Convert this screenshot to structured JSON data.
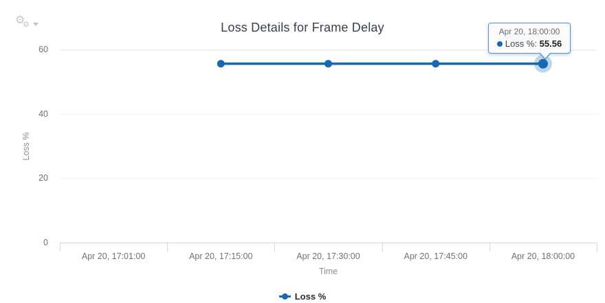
{
  "toolbar": {
    "menu_icon": "gears-icon",
    "menu_caret_icon": "caret-down-icon"
  },
  "chart_data": {
    "type": "line",
    "title": "Loss Details for Frame Delay",
    "xlabel": "Time",
    "ylabel": "Loss %",
    "ylim": [
      0,
      60
    ],
    "yticks": [
      0,
      20,
      40,
      60
    ],
    "x_tick_labels": [
      "Apr 20, 17:01:00",
      "Apr 20, 17:15:00",
      "Apr 20, 17:30:00",
      "Apr 20, 17:45:00",
      "Apr 20, 18:00:00"
    ],
    "grid": true,
    "legend": {
      "position": "bottom",
      "entries": [
        "Loss %"
      ]
    },
    "series": [
      {
        "name": "Loss %",
        "color": "#1669b2",
        "points": [
          {
            "x": "Apr 20, 17:15:00",
            "y": 55.56
          },
          {
            "x": "Apr 20, 17:30:00",
            "y": 55.56
          },
          {
            "x": "Apr 20, 17:45:00",
            "y": 55.56
          },
          {
            "x": "Apr 20, 18:00:00",
            "y": 55.56
          }
        ]
      }
    ]
  },
  "tooltip": {
    "visible": true,
    "time": "Apr 20, 18:00:00",
    "series_label": "Loss %:",
    "value": "55.56",
    "border_color": "#5191c9"
  },
  "colors": {
    "series_blue": "#1669b2",
    "halo_blue": "#1669b2",
    "axis_line": "#d4d4d4",
    "grid_dotted": "#e3e3e3",
    "tick_text": "#717171",
    "axis_title_text": "#8f8f8f",
    "title_text": "#39424a"
  }
}
